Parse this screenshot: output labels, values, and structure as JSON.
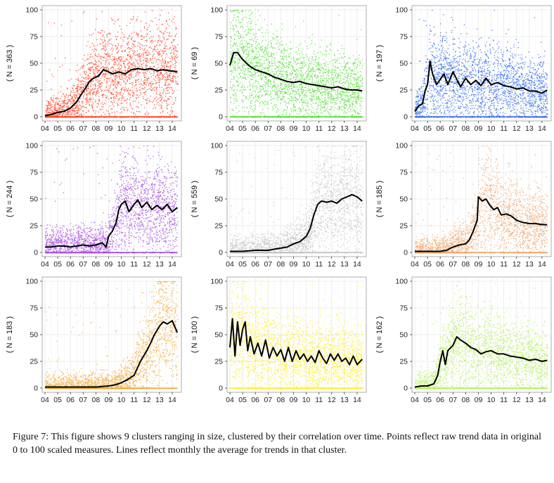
{
  "chart_data": [
    {
      "type": "scatter",
      "ylabel": "( N = 363 )",
      "color": "#ff2200",
      "xticks": [
        "04",
        "05",
        "06",
        "07",
        "08",
        "09",
        "10",
        "11",
        "12",
        "13",
        "14"
      ],
      "yticks": [
        0,
        25,
        50,
        75,
        100
      ],
      "ylim": [
        0,
        100
      ],
      "xlim": [
        2004,
        2014.5
      ],
      "mean_line": [
        [
          2004.0,
          1
        ],
        [
          2004.5,
          2
        ],
        [
          2005.0,
          4
        ],
        [
          2005.5,
          5
        ],
        [
          2006.0,
          8
        ],
        [
          2006.5,
          14
        ],
        [
          2006.8,
          20
        ],
        [
          2007.2,
          27
        ],
        [
          2007.5,
          33
        ],
        [
          2007.8,
          36
        ],
        [
          2008.2,
          38
        ],
        [
          2008.6,
          44
        ],
        [
          2009.0,
          42
        ],
        [
          2009.3,
          40
        ],
        [
          2009.8,
          42
        ],
        [
          2010.3,
          40
        ],
        [
          2010.8,
          44
        ],
        [
          2011.3,
          45
        ],
        [
          2011.8,
          44
        ],
        [
          2012.3,
          45
        ],
        [
          2012.8,
          43
        ],
        [
          2013.3,
          44
        ],
        [
          2013.8,
          43
        ],
        [
          2014.4,
          42
        ]
      ]
    },
    {
      "type": "scatter",
      "ylabel": "( N = 69 )",
      "color": "#33dd11",
      "xticks": [
        "04",
        "05",
        "06",
        "07",
        "08",
        "09",
        "10",
        "11",
        "12",
        "13",
        "14"
      ],
      "yticks": [
        0,
        25,
        50,
        75,
        100
      ],
      "ylim": [
        0,
        100
      ],
      "xlim": [
        2004,
        2014.5
      ],
      "mean_line": [
        [
          2004.0,
          48
        ],
        [
          2004.3,
          60
        ],
        [
          2004.6,
          60
        ],
        [
          2004.9,
          55
        ],
        [
          2005.3,
          50
        ],
        [
          2005.6,
          47
        ],
        [
          2006.0,
          44
        ],
        [
          2006.5,
          42
        ],
        [
          2007.0,
          40
        ],
        [
          2007.5,
          37
        ],
        [
          2008.0,
          35
        ],
        [
          2008.5,
          33
        ],
        [
          2009.0,
          32
        ],
        [
          2009.5,
          33
        ],
        [
          2010.0,
          31
        ],
        [
          2010.5,
          30
        ],
        [
          2011.0,
          29
        ],
        [
          2011.5,
          28
        ],
        [
          2012.0,
          27
        ],
        [
          2012.5,
          28
        ],
        [
          2013.0,
          26
        ],
        [
          2013.5,
          25
        ],
        [
          2014.0,
          25
        ],
        [
          2014.4,
          24
        ]
      ]
    },
    {
      "type": "scatter",
      "ylabel": "( N = 197 )",
      "color": "#1155ee",
      "xticks": [
        "04",
        "05",
        "06",
        "07",
        "08",
        "09",
        "10",
        "11",
        "12",
        "13",
        "14"
      ],
      "yticks": [
        0,
        25,
        50,
        75,
        100
      ],
      "ylim": [
        0,
        100
      ],
      "xlim": [
        2004,
        2014.5
      ],
      "mean_line": [
        [
          2004.0,
          5
        ],
        [
          2004.3,
          10
        ],
        [
          2004.6,
          12
        ],
        [
          2004.8,
          24
        ],
        [
          2005.0,
          30
        ],
        [
          2005.2,
          52
        ],
        [
          2005.4,
          40
        ],
        [
          2005.7,
          30
        ],
        [
          2006.0,
          35
        ],
        [
          2006.3,
          40
        ],
        [
          2006.6,
          30
        ],
        [
          2007.0,
          42
        ],
        [
          2007.3,
          35
        ],
        [
          2007.6,
          28
        ],
        [
          2008.0,
          36
        ],
        [
          2008.4,
          30
        ],
        [
          2008.8,
          34
        ],
        [
          2009.2,
          29
        ],
        [
          2009.6,
          36
        ],
        [
          2010.0,
          30
        ],
        [
          2010.5,
          32
        ],
        [
          2011.0,
          29
        ],
        [
          2011.5,
          28
        ],
        [
          2012.0,
          26
        ],
        [
          2012.5,
          27
        ],
        [
          2013.0,
          24
        ],
        [
          2013.5,
          24
        ],
        [
          2014.0,
          22
        ],
        [
          2014.4,
          25
        ]
      ]
    },
    {
      "type": "scatter",
      "ylabel": "( N = 244 )",
      "color": "#9933dd",
      "xticks": [
        "04",
        "05",
        "06",
        "07",
        "08",
        "09",
        "10",
        "11",
        "12",
        "13",
        "14"
      ],
      "yticks": [
        0,
        25,
        50,
        75,
        100
      ],
      "ylim": [
        0,
        100
      ],
      "xlim": [
        2004,
        2014.5
      ],
      "mean_line": [
        [
          2004.0,
          5
        ],
        [
          2004.5,
          5
        ],
        [
          2005.0,
          6
        ],
        [
          2005.5,
          6
        ],
        [
          2006.0,
          5
        ],
        [
          2006.5,
          6
        ],
        [
          2007.0,
          7
        ],
        [
          2007.5,
          6
        ],
        [
          2008.0,
          7
        ],
        [
          2008.5,
          9
        ],
        [
          2008.8,
          5
        ],
        [
          2009.0,
          15
        ],
        [
          2009.3,
          20
        ],
        [
          2009.6,
          28
        ],
        [
          2009.8,
          40
        ],
        [
          2010.0,
          45
        ],
        [
          2010.3,
          48
        ],
        [
          2010.6,
          38
        ],
        [
          2011.0,
          45
        ],
        [
          2011.3,
          49
        ],
        [
          2011.6,
          42
        ],
        [
          2012.0,
          47
        ],
        [
          2012.4,
          40
        ],
        [
          2012.8,
          44
        ],
        [
          2013.2,
          40
        ],
        [
          2013.6,
          45
        ],
        [
          2014.0,
          38
        ],
        [
          2014.4,
          42
        ]
      ]
    },
    {
      "type": "scatter",
      "ylabel": "( N = 559 )",
      "color": "#bbbbbb",
      "xticks": [
        "04",
        "05",
        "06",
        "07",
        "08",
        "09",
        "10",
        "11",
        "12",
        "13",
        "14"
      ],
      "yticks": [
        0,
        25,
        50,
        75,
        100
      ],
      "ylim": [
        0,
        100
      ],
      "xlim": [
        2004,
        2014.5
      ],
      "mean_line": [
        [
          2004.0,
          1
        ],
        [
          2005.0,
          1
        ],
        [
          2006.0,
          2
        ],
        [
          2007.0,
          2
        ],
        [
          2008.0,
          4
        ],
        [
          2008.5,
          5
        ],
        [
          2009.0,
          8
        ],
        [
          2009.5,
          10
        ],
        [
          2010.0,
          15
        ],
        [
          2010.3,
          22
        ],
        [
          2010.6,
          35
        ],
        [
          2010.9,
          45
        ],
        [
          2011.2,
          48
        ],
        [
          2011.6,
          47
        ],
        [
          2012.0,
          48
        ],
        [
          2012.4,
          46
        ],
        [
          2012.8,
          50
        ],
        [
          2013.2,
          52
        ],
        [
          2013.6,
          54
        ],
        [
          2014.0,
          52
        ],
        [
          2014.4,
          48
        ]
      ]
    },
    {
      "type": "scatter",
      "ylabel": "( N = 185 )",
      "color": "#ee9955",
      "xticks": [
        "04",
        "05",
        "06",
        "07",
        "08",
        "09",
        "10",
        "11",
        "12",
        "13",
        "14"
      ],
      "yticks": [
        0,
        25,
        50,
        75,
        100
      ],
      "ylim": [
        0,
        100
      ],
      "xlim": [
        2004,
        2014.5
      ],
      "mean_line": [
        [
          2004.0,
          1
        ],
        [
          2005.0,
          1
        ],
        [
          2006.0,
          1
        ],
        [
          2006.5,
          2
        ],
        [
          2007.0,
          5
        ],
        [
          2007.5,
          7
        ],
        [
          2008.0,
          8
        ],
        [
          2008.3,
          12
        ],
        [
          2008.6,
          20
        ],
        [
          2008.9,
          30
        ],
        [
          2009.0,
          52
        ],
        [
          2009.3,
          48
        ],
        [
          2009.6,
          50
        ],
        [
          2009.9,
          44
        ],
        [
          2010.2,
          40
        ],
        [
          2010.5,
          42
        ],
        [
          2010.8,
          35
        ],
        [
          2011.2,
          36
        ],
        [
          2011.6,
          34
        ],
        [
          2012.0,
          30
        ],
        [
          2012.5,
          28
        ],
        [
          2013.0,
          27
        ],
        [
          2013.5,
          27
        ],
        [
          2014.0,
          26
        ],
        [
          2014.4,
          26
        ]
      ]
    },
    {
      "type": "scatter",
      "ylabel": "( N = 183 )",
      "color": "#f0a020",
      "xticks": [
        "04",
        "05",
        "06",
        "07",
        "08",
        "09",
        "10",
        "11",
        "12",
        "13",
        "14"
      ],
      "yticks": [
        0,
        25,
        50,
        75,
        100
      ],
      "ylim": [
        0,
        100
      ],
      "xlim": [
        2004,
        2014.5
      ],
      "mean_line": [
        [
          2004.0,
          1
        ],
        [
          2005.0,
          1
        ],
        [
          2006.0,
          1
        ],
        [
          2007.0,
          1
        ],
        [
          2008.0,
          1
        ],
        [
          2009.0,
          2
        ],
        [
          2009.5,
          3
        ],
        [
          2010.0,
          5
        ],
        [
          2010.5,
          8
        ],
        [
          2011.0,
          12
        ],
        [
          2011.5,
          25
        ],
        [
          2012.0,
          35
        ],
        [
          2012.3,
          42
        ],
        [
          2012.6,
          50
        ],
        [
          2013.0,
          58
        ],
        [
          2013.3,
          62
        ],
        [
          2013.6,
          60
        ],
        [
          2014.0,
          63
        ],
        [
          2014.4,
          52
        ]
      ]
    },
    {
      "type": "scatter",
      "ylabel": "( N = 100 )",
      "color": "#ffee00",
      "xticks": [
        "04",
        "05",
        "06",
        "07",
        "08",
        "09",
        "10",
        "11",
        "12",
        "13",
        "14"
      ],
      "yticks": [
        0,
        25,
        50,
        75,
        100
      ],
      "ylim": [
        0,
        100
      ],
      "xlim": [
        2004,
        2014.5
      ],
      "mean_line": [
        [
          2004.0,
          38
        ],
        [
          2004.2,
          65
        ],
        [
          2004.4,
          30
        ],
        [
          2004.6,
          62
        ],
        [
          2004.8,
          40
        ],
        [
          2005.0,
          55
        ],
        [
          2005.2,
          62
        ],
        [
          2005.4,
          35
        ],
        [
          2005.6,
          48
        ],
        [
          2005.9,
          32
        ],
        [
          2006.2,
          42
        ],
        [
          2006.5,
          30
        ],
        [
          2006.8,
          45
        ],
        [
          2007.1,
          28
        ],
        [
          2007.4,
          38
        ],
        [
          2007.7,
          30
        ],
        [
          2008.0,
          36
        ],
        [
          2008.3,
          25
        ],
        [
          2008.6,
          38
        ],
        [
          2008.9,
          25
        ],
        [
          2009.2,
          35
        ],
        [
          2009.5,
          27
        ],
        [
          2009.8,
          32
        ],
        [
          2010.1,
          25
        ],
        [
          2010.4,
          30
        ],
        [
          2010.7,
          24
        ],
        [
          2011.0,
          35
        ],
        [
          2011.3,
          28
        ],
        [
          2011.6,
          23
        ],
        [
          2011.9,
          32
        ],
        [
          2012.2,
          26
        ],
        [
          2012.5,
          32
        ],
        [
          2012.8,
          25
        ],
        [
          2013.1,
          28
        ],
        [
          2013.4,
          22
        ],
        [
          2013.7,
          30
        ],
        [
          2014.0,
          22
        ],
        [
          2014.4,
          27
        ]
      ]
    },
    {
      "type": "scatter",
      "ylabel": "( N = 162 )",
      "color": "#aaee44",
      "xticks": [
        "04",
        "05",
        "06",
        "07",
        "08",
        "09",
        "10",
        "11",
        "12",
        "13",
        "14"
      ],
      "yticks": [
        0,
        25,
        50,
        75,
        100
      ],
      "ylim": [
        0,
        100
      ],
      "xlim": [
        2004,
        2014.5
      ],
      "mean_line": [
        [
          2004.0,
          1
        ],
        [
          2004.5,
          2
        ],
        [
          2005.0,
          2
        ],
        [
          2005.5,
          4
        ],
        [
          2005.8,
          12
        ],
        [
          2006.0,
          25
        ],
        [
          2006.2,
          35
        ],
        [
          2006.4,
          22
        ],
        [
          2006.6,
          35
        ],
        [
          2007.0,
          40
        ],
        [
          2007.3,
          48
        ],
        [
          2007.6,
          45
        ],
        [
          2008.0,
          42
        ],
        [
          2008.4,
          38
        ],
        [
          2008.8,
          36
        ],
        [
          2009.2,
          32
        ],
        [
          2009.6,
          34
        ],
        [
          2010.0,
          35
        ],
        [
          2010.5,
          32
        ],
        [
          2011.0,
          32
        ],
        [
          2011.5,
          30
        ],
        [
          2012.0,
          29
        ],
        [
          2012.5,
          28
        ],
        [
          2013.0,
          26
        ],
        [
          2013.5,
          27
        ],
        [
          2014.0,
          25
        ],
        [
          2014.4,
          26
        ]
      ]
    }
  ],
  "caption": "Figure 7: This figure shows 9 clusters ranging in size, clustered by their correlation over time. Points reflect raw trend data in original 0 to 100 scaled measures. Lines reflect monthly the average for trends in that cluster."
}
